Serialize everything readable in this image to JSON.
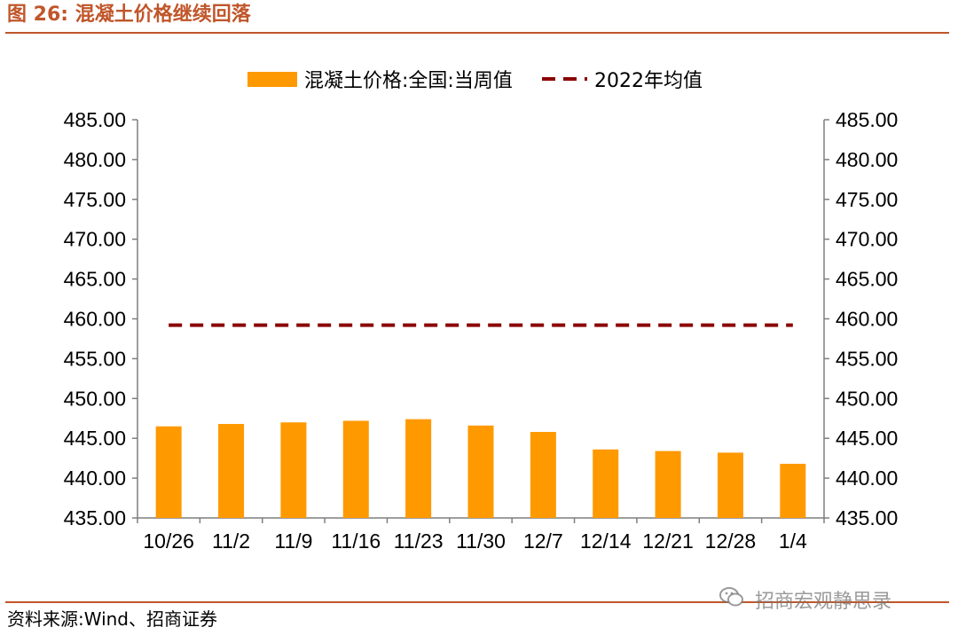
{
  "figure": {
    "title_prefix": "图 26:",
    "title_text": "混凝土价格继续回落",
    "source": "资料来源:Wind、招商证券",
    "watermark": "招商宏观静思录"
  },
  "colors": {
    "accent": "#c0562a",
    "bar": "#ff9900",
    "dashed": "#8b0000",
    "axis": "#7f7f7f"
  },
  "chart_data": {
    "type": "bar",
    "title": "",
    "categories": [
      "10/26",
      "11/2",
      "11/9",
      "11/16",
      "11/23",
      "11/30",
      "12/7",
      "12/14",
      "12/21",
      "12/28",
      "1/4"
    ],
    "series": [
      {
        "name": "混凝土价格:全国:当周值",
        "type": "bar",
        "values": [
          446.5,
          446.8,
          447.0,
          447.2,
          447.4,
          446.6,
          445.8,
          443.6,
          443.4,
          443.2,
          441.8
        ]
      },
      {
        "name": "2022年均值",
        "type": "dashed-line",
        "values": [
          459.2,
          459.2,
          459.2,
          459.2,
          459.2,
          459.2,
          459.2,
          459.2,
          459.2,
          459.2,
          459.2
        ]
      }
    ],
    "ylim": [
      435,
      485
    ],
    "yticks": [
      "435.00",
      "440.00",
      "445.00",
      "450.00",
      "455.00",
      "460.00",
      "465.00",
      "470.00",
      "475.00",
      "480.00",
      "485.00"
    ],
    "y2ticks": [
      "435.00",
      "440.00",
      "445.00",
      "450.00",
      "455.00",
      "460.00",
      "465.00",
      "470.00",
      "475.00",
      "480.00",
      "485.00"
    ],
    "xlabel": "",
    "ylabel": "",
    "legend_position": "top-center",
    "grid": false
  }
}
